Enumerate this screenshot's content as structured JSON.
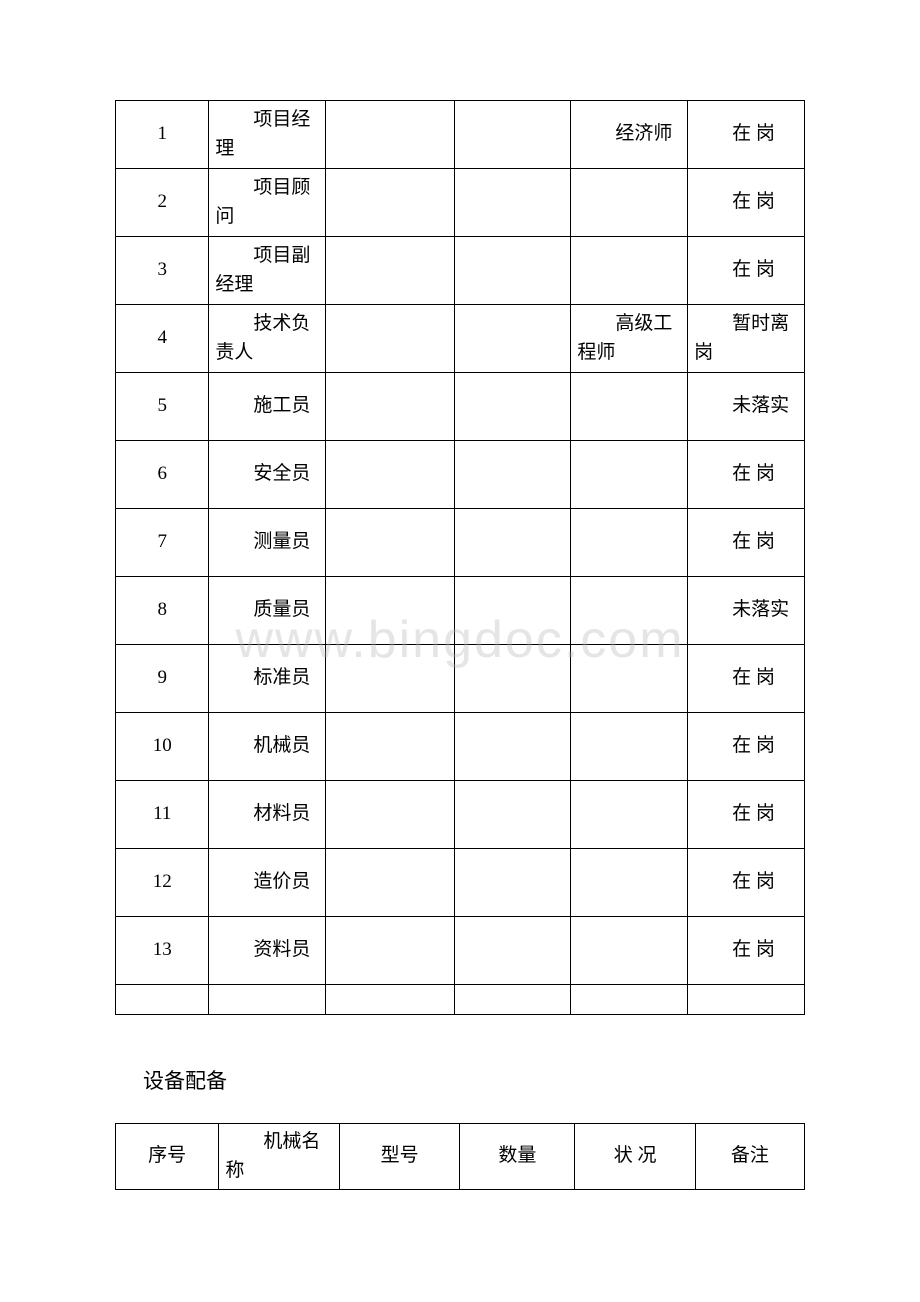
{
  "table1": {
    "rows": [
      {
        "num": "1",
        "role": "项目经理",
        "c3": "",
        "c4": "",
        "title": "经济师",
        "status": "在 岗"
      },
      {
        "num": "2",
        "role": "项目顾问",
        "c3": "",
        "c4": "",
        "title": "",
        "status": "在 岗"
      },
      {
        "num": "3",
        "role": "项目副经理",
        "c3": "",
        "c4": "",
        "title": "",
        "status": "在 岗"
      },
      {
        "num": "4",
        "role": "技术负责人",
        "c3": "",
        "c4": "",
        "title": "高级工程师",
        "status": "暂时离岗"
      },
      {
        "num": "5",
        "role": "施工员",
        "c3": "",
        "c4": "",
        "title": "",
        "status": "未落实"
      },
      {
        "num": "6",
        "role": "安全员",
        "c3": "",
        "c4": "",
        "title": "",
        "status": "在 岗"
      },
      {
        "num": "7",
        "role": "测量员",
        "c3": "",
        "c4": "",
        "title": "",
        "status": "在 岗"
      },
      {
        "num": "8",
        "role": "质量员",
        "c3": "",
        "c4": "",
        "title": "",
        "status": "未落实"
      },
      {
        "num": "9",
        "role": "标准员",
        "c3": "",
        "c4": "",
        "title": "",
        "status": "在 岗"
      },
      {
        "num": "10",
        "role": "机械员",
        "c3": "",
        "c4": "",
        "title": "",
        "status": "在 岗"
      },
      {
        "num": "11",
        "role": "材料员",
        "c3": "",
        "c4": "",
        "title": "",
        "status": "在 岗"
      },
      {
        "num": "12",
        "role": "造价员",
        "c3": "",
        "c4": "",
        "title": "",
        "status": "在 岗"
      },
      {
        "num": "13",
        "role": "资料员",
        "c3": "",
        "c4": "",
        "title": "",
        "status": "在 岗"
      }
    ]
  },
  "heading": "设备配备",
  "table2": {
    "headers": {
      "c1": "序号",
      "c2": "机械名称",
      "c3": "型号",
      "c4": "数量",
      "c5": "状 况",
      "c6": "备注"
    }
  },
  "watermark": "www.bingdoc.com",
  "colors": {
    "border": "#000000",
    "text": "#000000",
    "background": "#ffffff",
    "watermark": "rgba(180,180,180,0.35)"
  }
}
